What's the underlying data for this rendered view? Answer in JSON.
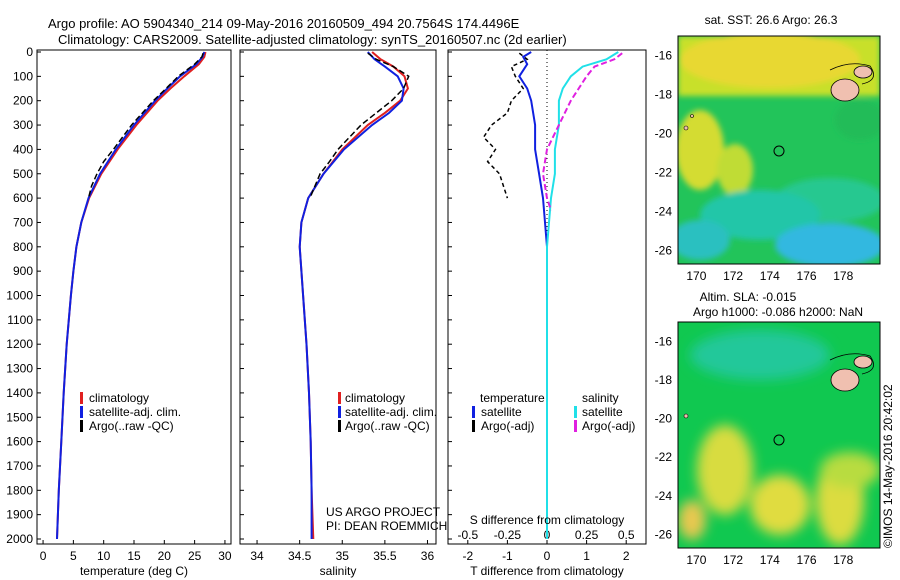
{
  "header": {
    "line1": "Argo profile: AO 5904340_214 09-May-2016 20160509_494 20.7564S 174.4496E",
    "line2": "Climatology: CARS2009. Satellite-adjusted climatology: synTS_20160507.nc (2d earlier)"
  },
  "map_titles": {
    "sst": "sat. SST: 26.6 Argo: 26.3",
    "sla_line1": "Altim. SLA: -0.015",
    "sla_line2": "Argo h1000: -0.086 h2000: NaN"
  },
  "credit": "©IMOS 14-May-2016 20:42:02",
  "project": {
    "line1": "US ARGO PROJECT",
    "line2": "PI: DEAN ROEMMICH"
  },
  "legends": {
    "climatology": "climatology",
    "satellite_adj": "satellite-adj. clim.",
    "argo_raw": "Argo(..raw -QC)",
    "temperature": "temperature",
    "salinity": "salinity",
    "satellite": "satellite",
    "argo_adj": "Argo(-adj)"
  },
  "colors": {
    "climatology": "#e02020",
    "satellite": "#1020e0",
    "argo": "#000000",
    "sal_satellite": "#20e0e8",
    "sal_argo": "#e020e0"
  },
  "chart_data": [
    {
      "type": "line",
      "xlabel": "temperature (deg C)",
      "ylabel": "",
      "xlim": [
        -1,
        31
      ],
      "ylim": [
        2050,
        0
      ],
      "x_ticks": [
        0,
        5,
        10,
        15,
        20,
        25,
        30
      ],
      "y_ticks": [
        0,
        100,
        200,
        300,
        400,
        500,
        600,
        700,
        800,
        900,
        1000,
        1100,
        1200,
        1300,
        1400,
        1500,
        1600,
        1700,
        1800,
        1900,
        2000
      ],
      "series": [
        {
          "name": "climatology",
          "depth": [
            0,
            20,
            50,
            100,
            150,
            200,
            300,
            400,
            500,
            600,
            700,
            800,
            900,
            1000,
            1200,
            1400,
            1600,
            1800,
            2000
          ],
          "values": [
            26.8,
            26.6,
            25.7,
            23.3,
            21.0,
            18.9,
            15.4,
            12.3,
            9.6,
            7.6,
            6.3,
            5.5,
            5.0,
            4.6,
            3.9,
            3.4,
            3.0,
            2.6,
            2.3
          ]
        },
        {
          "name": "satellite-adj. clim.",
          "depth": [
            0,
            20,
            50,
            100,
            150,
            200,
            300,
            400,
            500,
            600,
            700,
            800,
            900,
            1000,
            1200,
            1400,
            1600,
            1800,
            2000
          ],
          "values": [
            26.6,
            26.3,
            25.3,
            22.6,
            20.5,
            18.5,
            15.0,
            12.0,
            9.4,
            7.5,
            6.3,
            5.5,
            5.0,
            4.6,
            3.9,
            3.4,
            3.0,
            2.6,
            2.3
          ]
        },
        {
          "name": "Argo(..raw -QC)",
          "depth": [
            5,
            20,
            50,
            100,
            150,
            200,
            300,
            400,
            450,
            500,
            550,
            600
          ],
          "values": [
            26.4,
            26.2,
            25.0,
            22.3,
            20.3,
            18.2,
            14.6,
            11.6,
            10.0,
            8.9,
            8.0,
            7.5
          ]
        }
      ]
    },
    {
      "type": "line",
      "xlabel": "salinity",
      "ylabel": "",
      "xlim": [
        33.8,
        36.1
      ],
      "ylim": [
        2050,
        0
      ],
      "x_ticks": [
        34,
        34.5,
        35,
        35.5,
        36
      ],
      "series": [
        {
          "name": "climatology",
          "depth": [
            0,
            30,
            60,
            100,
            150,
            200,
            250,
            300,
            400,
            500,
            600,
            700,
            800,
            900,
            1000,
            1200,
            1400,
            1600,
            1800,
            2000
          ],
          "values": [
            35.35,
            35.45,
            35.6,
            35.73,
            35.77,
            35.68,
            35.5,
            35.3,
            35.0,
            34.78,
            34.6,
            34.52,
            34.5,
            34.52,
            34.54,
            34.58,
            34.61,
            34.63,
            34.64,
            34.66
          ]
        },
        {
          "name": "satellite-adj. clim.",
          "depth": [
            0,
            30,
            60,
            100,
            150,
            200,
            250,
            300,
            400,
            500,
            600,
            700,
            800,
            900,
            1000,
            1200,
            1400,
            1600,
            1800,
            2000
          ],
          "values": [
            35.3,
            35.38,
            35.5,
            35.65,
            35.72,
            35.7,
            35.55,
            35.35,
            35.02,
            34.78,
            34.6,
            34.52,
            34.5,
            34.52,
            34.54,
            34.58,
            34.61,
            34.63,
            34.64,
            34.64
          ]
        },
        {
          "name": "Argo(..raw -QC)",
          "depth": [
            5,
            30,
            60,
            100,
            150,
            200,
            250,
            300,
            400,
            450,
            500,
            550,
            600
          ],
          "values": [
            35.3,
            35.4,
            35.6,
            35.78,
            35.72,
            35.58,
            35.4,
            35.22,
            34.95,
            34.85,
            34.74,
            34.68,
            34.62
          ]
        }
      ]
    },
    {
      "type": "line",
      "xlabel": "T difference from climatology",
      "ylabel": "",
      "title": "S difference from climatology",
      "xlim": [
        -2.5,
        2.5
      ],
      "ylim": [
        2050,
        0
      ],
      "x_ticks": [
        -2,
        -1,
        0,
        1,
        2
      ],
      "top_ticks": [
        -0.5,
        -0.25,
        0,
        0.25,
        0.5
      ],
      "series": [
        {
          "name": "temperature satellite",
          "depth": [
            0,
            20,
            50,
            100,
            150,
            200,
            300,
            400,
            500,
            600,
            700,
            800,
            1000,
            1200,
            1500,
            1800,
            2000
          ],
          "values": [
            -0.4,
            -0.6,
            -0.5,
            -0.7,
            -0.5,
            -0.4,
            -0.3,
            -0.3,
            -0.2,
            -0.1,
            -0.05,
            0,
            0,
            0,
            0,
            0,
            0
          ]
        },
        {
          "name": "temperature Argo(-adj)",
          "depth": [
            5,
            30,
            60,
            100,
            150,
            200,
            250,
            300,
            350,
            400,
            450,
            500,
            550,
            600
          ],
          "values": [
            -0.7,
            -0.5,
            -0.9,
            -0.8,
            -0.6,
            -0.9,
            -1.0,
            -1.4,
            -1.6,
            -1.3,
            -1.5,
            -1.2,
            -1.1,
            -1.0
          ]
        },
        {
          "name": "salinity satellite",
          "depth": [
            0,
            30,
            60,
            100,
            150,
            200,
            300,
            400,
            500,
            600,
            700,
            800,
            1000,
            1400,
            2000
          ],
          "values": [
            1.8,
            1.5,
            0.9,
            0.6,
            0.4,
            0.3,
            0.3,
            0.2,
            0.2,
            0.1,
            0.05,
            0,
            0,
            0,
            0
          ]
        },
        {
          "name": "salinity Argo(-adj)",
          "depth": [
            5,
            30,
            60,
            100,
            150,
            200,
            300,
            400,
            500,
            600,
            650
          ],
          "values": [
            1.9,
            1.7,
            1.2,
            1.0,
            0.8,
            0.6,
            0.3,
            0.0,
            -0.1,
            0.0,
            0.1
          ]
        }
      ]
    },
    {
      "type": "heatmap",
      "title": "sat. SST: 26.6 Argo: 26.3",
      "xlim": [
        169,
        180
      ],
      "ylim": [
        -26.7,
        -15
      ],
      "x_ticks": [
        170,
        172,
        174,
        176,
        178
      ],
      "y_ticks": [
        -16,
        -18,
        -20,
        -22,
        -24,
        -26
      ],
      "marker": {
        "lon": 174.45,
        "lat": -20.76
      }
    },
    {
      "type": "heatmap",
      "title": "Altim. SLA: -0.015",
      "xlim": [
        169,
        180
      ],
      "ylim": [
        -26.7,
        -15
      ],
      "x_ticks": [
        170,
        172,
        174,
        176,
        178
      ],
      "y_ticks": [
        -16,
        -18,
        -20,
        -22,
        -24,
        -26
      ],
      "marker": {
        "lon": 174.45,
        "lat": -20.76
      }
    }
  ]
}
